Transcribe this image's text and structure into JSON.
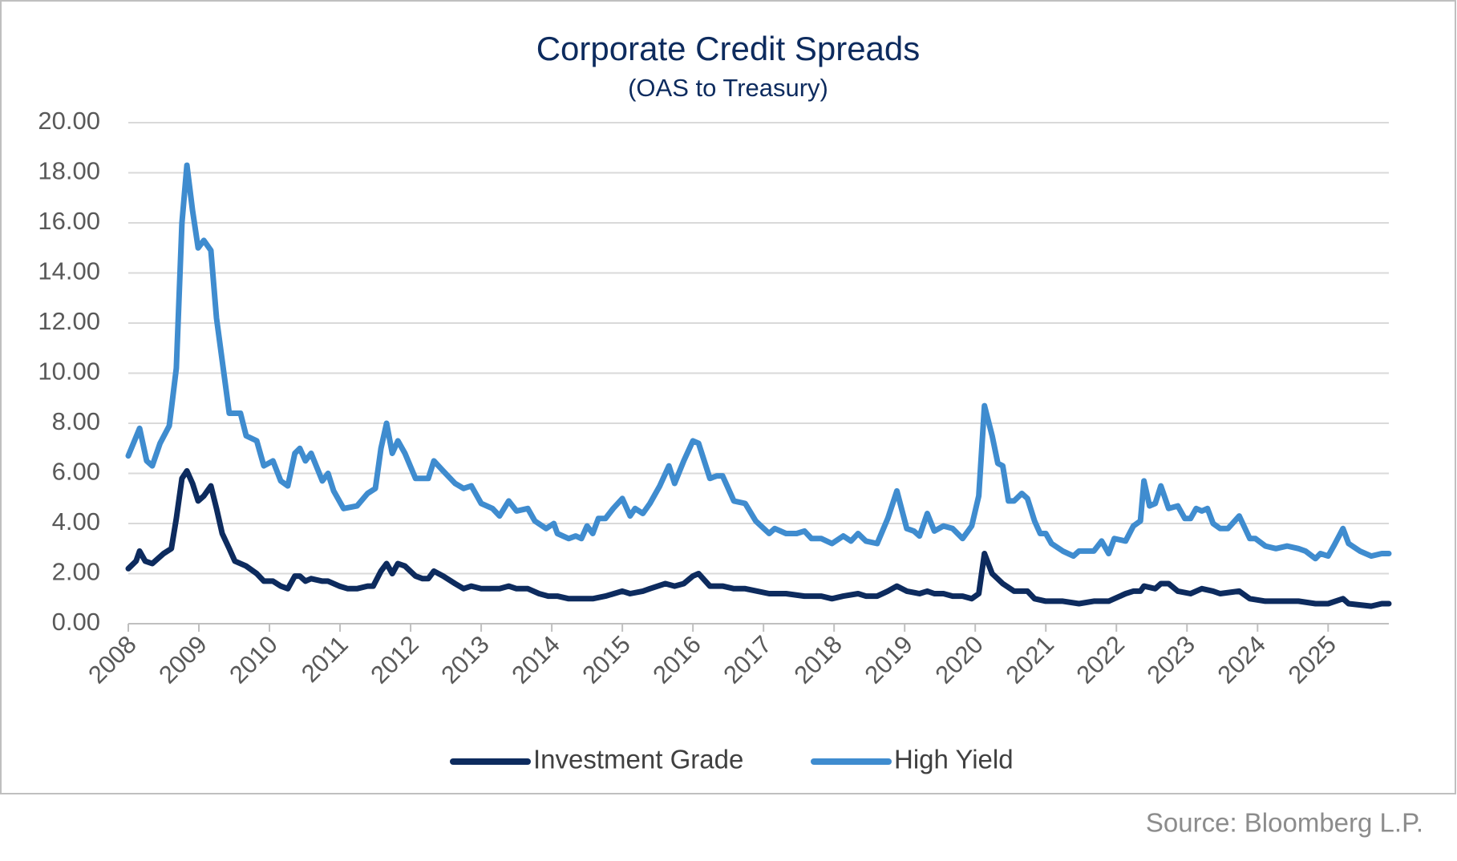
{
  "chart_data": {
    "type": "line",
    "title": "Corporate Credit Spreads",
    "subtitle": "(OAS to Treasury)",
    "source": "Source: Bloomberg L.P.",
    "grid": true,
    "legend": "bottom",
    "xlim": [
      2008,
      2025.86
    ],
    "xticks": [
      2008,
      2009,
      2010,
      2011,
      2012,
      2013,
      2014,
      2015,
      2016,
      2017,
      2018,
      2019,
      2020,
      2021,
      2022,
      2023,
      2024,
      2025
    ],
    "ylim": [
      0,
      20
    ],
    "yticks": [
      {
        "value": 0,
        "label": "0.00"
      },
      {
        "value": 2,
        "label": "2.00"
      },
      {
        "value": 4,
        "label": "4.00"
      },
      {
        "value": 6,
        "label": "6.00"
      },
      {
        "value": 8,
        "label": "8.00"
      },
      {
        "value": 10,
        "label": "10.00"
      },
      {
        "value": 12,
        "label": "12.00"
      },
      {
        "value": 14,
        "label": "14.00"
      },
      {
        "value": 16,
        "label": "16.00"
      },
      {
        "value": 18,
        "label": "18.00"
      },
      {
        "value": 20,
        "label": "20.00"
      }
    ],
    "series": [
      {
        "name": "Investment Grade",
        "color": "#0d2b5e",
        "x": [
          2008.0,
          2008.11,
          2008.16,
          2008.24,
          2008.34,
          2008.5,
          2008.61,
          2008.68,
          2008.76,
          2008.83,
          2008.91,
          2008.99,
          2009.07,
          2009.17,
          2009.25,
          2009.33,
          2009.43,
          2009.51,
          2009.67,
          2009.82,
          2009.92,
          2010.05,
          2010.16,
          2010.26,
          2010.36,
          2010.43,
          2010.51,
          2010.59,
          2010.75,
          2010.83,
          2010.99,
          2011.11,
          2011.24,
          2011.39,
          2011.47,
          2011.58,
          2011.66,
          2011.74,
          2011.82,
          2011.92,
          2012.07,
          2012.17,
          2012.25,
          2012.33,
          2012.46,
          2012.63,
          2012.75,
          2012.86,
          2013.0,
          2013.16,
          2013.26,
          2013.39,
          2013.5,
          2013.66,
          2013.82,
          2013.95,
          2014.08,
          2014.24,
          2014.42,
          2014.58,
          2014.76,
          2015.0,
          2015.11,
          2015.29,
          2015.39,
          2015.61,
          2015.74,
          2015.87,
          2016.0,
          2016.08,
          2016.24,
          2016.42,
          2016.58,
          2016.74,
          2017.08,
          2017.32,
          2017.58,
          2017.82,
          2017.97,
          2018.13,
          2018.34,
          2018.45,
          2018.61,
          2018.76,
          2018.89,
          2019.03,
          2019.21,
          2019.32,
          2019.42,
          2019.55,
          2019.68,
          2019.82,
          2019.95,
          2020.05,
          2020.13,
          2020.24,
          2020.39,
          2020.55,
          2020.66,
          2020.74,
          2020.84,
          2021.0,
          2021.24,
          2021.47,
          2021.68,
          2021.89,
          2021.97,
          2022.13,
          2022.24,
          2022.34,
          2022.39,
          2022.55,
          2022.63,
          2022.74,
          2022.87,
          2023.05,
          2023.21,
          2023.37,
          2023.47,
          2023.74,
          2023.89,
          2024.11,
          2024.26,
          2024.42,
          2024.58,
          2024.82,
          2025.0,
          2025.21,
          2025.29,
          2025.61,
          2025.76,
          2025.86
        ],
        "values": [
          2.2,
          2.5,
          2.9,
          2.5,
          2.4,
          2.8,
          3.0,
          4.2,
          5.8,
          6.1,
          5.6,
          4.9,
          5.1,
          5.5,
          4.6,
          3.6,
          3.0,
          2.5,
          2.3,
          2.0,
          1.7,
          1.7,
          1.5,
          1.4,
          1.9,
          1.9,
          1.7,
          1.8,
          1.7,
          1.7,
          1.5,
          1.4,
          1.4,
          1.5,
          1.5,
          2.1,
          2.4,
          2.0,
          2.4,
          2.3,
          1.9,
          1.8,
          1.8,
          2.1,
          1.9,
          1.6,
          1.4,
          1.5,
          1.4,
          1.4,
          1.4,
          1.5,
          1.4,
          1.4,
          1.2,
          1.1,
          1.1,
          1.0,
          1.0,
          1.0,
          1.1,
          1.3,
          1.2,
          1.3,
          1.4,
          1.6,
          1.5,
          1.6,
          1.9,
          2.0,
          1.5,
          1.5,
          1.4,
          1.4,
          1.2,
          1.2,
          1.1,
          1.1,
          1.0,
          1.1,
          1.2,
          1.1,
          1.1,
          1.3,
          1.5,
          1.3,
          1.2,
          1.3,
          1.2,
          1.2,
          1.1,
          1.1,
          1.0,
          1.2,
          2.8,
          2.0,
          1.6,
          1.3,
          1.3,
          1.3,
          1.0,
          0.9,
          0.9,
          0.8,
          0.9,
          0.9,
          1.0,
          1.2,
          1.3,
          1.3,
          1.5,
          1.4,
          1.6,
          1.6,
          1.3,
          1.2,
          1.4,
          1.3,
          1.2,
          1.3,
          1.0,
          0.9,
          0.9,
          0.9,
          0.9,
          0.8,
          0.8,
          1.0,
          0.8,
          0.7,
          0.8,
          0.8
        ]
      },
      {
        "name": "High Yield",
        "color": "#3f8ccf",
        "x": [
          2008.0,
          2008.16,
          2008.26,
          2008.34,
          2008.45,
          2008.58,
          2008.68,
          2008.76,
          2008.83,
          2008.91,
          2008.99,
          2009.07,
          2009.17,
          2009.25,
          2009.33,
          2009.43,
          2009.59,
          2009.67,
          2009.82,
          2009.92,
          2010.05,
          2010.16,
          2010.26,
          2010.36,
          2010.43,
          2010.51,
          2010.59,
          2010.75,
          2010.83,
          2010.91,
          2011.05,
          2011.24,
          2011.39,
          2011.5,
          2011.58,
          2011.66,
          2011.74,
          2011.82,
          2011.92,
          2012.07,
          2012.25,
          2012.33,
          2012.46,
          2012.63,
          2012.75,
          2012.86,
          2013.0,
          2013.16,
          2013.26,
          2013.39,
          2013.5,
          2013.66,
          2013.76,
          2013.92,
          2014.03,
          2014.08,
          2014.24,
          2014.34,
          2014.42,
          2014.5,
          2014.58,
          2014.66,
          2014.76,
          2014.87,
          2015.0,
          2015.11,
          2015.18,
          2015.29,
          2015.39,
          2015.53,
          2015.66,
          2015.74,
          2015.87,
          2016.0,
          2016.08,
          2016.24,
          2016.34,
          2016.42,
          2016.58,
          2016.74,
          2016.89,
          2017.08,
          2017.16,
          2017.32,
          2017.47,
          2017.58,
          2017.68,
          2017.82,
          2017.97,
          2018.13,
          2018.24,
          2018.34,
          2018.45,
          2018.61,
          2018.76,
          2018.89,
          2019.03,
          2019.13,
          2019.21,
          2019.32,
          2019.42,
          2019.55,
          2019.68,
          2019.82,
          2019.95,
          2020.05,
          2020.13,
          2020.24,
          2020.32,
          2020.39,
          2020.47,
          2020.55,
          2020.66,
          2020.74,
          2020.84,
          2020.92,
          2021.0,
          2021.08,
          2021.24,
          2021.39,
          2021.47,
          2021.68,
          2021.79,
          2021.89,
          2021.97,
          2022.13,
          2022.24,
          2022.34,
          2022.39,
          2022.47,
          2022.55,
          2022.63,
          2022.74,
          2022.87,
          2022.97,
          2023.05,
          2023.13,
          2023.21,
          2023.29,
          2023.37,
          2023.47,
          2023.58,
          2023.74,
          2023.89,
          2023.97,
          2024.11,
          2024.26,
          2024.42,
          2024.58,
          2024.68,
          2024.82,
          2024.89,
          2025.0,
          2025.08,
          2025.21,
          2025.29,
          2025.45,
          2025.61,
          2025.76,
          2025.86
        ],
        "values": [
          6.7,
          7.8,
          6.5,
          6.3,
          7.2,
          7.9,
          10.2,
          16.0,
          18.3,
          16.5,
          15.0,
          15.3,
          14.9,
          12.2,
          10.5,
          8.4,
          8.4,
          7.5,
          7.3,
          6.3,
          6.5,
          5.7,
          5.5,
          6.8,
          7.0,
          6.5,
          6.8,
          5.7,
          6.0,
          5.3,
          4.6,
          4.7,
          5.2,
          5.4,
          7.0,
          8.0,
          6.8,
          7.3,
          6.8,
          5.8,
          5.8,
          6.5,
          6.1,
          5.6,
          5.4,
          5.5,
          4.8,
          4.6,
          4.3,
          4.9,
          4.5,
          4.6,
          4.1,
          3.8,
          4.0,
          3.6,
          3.4,
          3.5,
          3.4,
          3.9,
          3.6,
          4.2,
          4.2,
          4.6,
          5.0,
          4.3,
          4.6,
          4.4,
          4.8,
          5.5,
          6.3,
          5.6,
          6.5,
          7.3,
          7.2,
          5.8,
          5.9,
          5.9,
          4.9,
          4.8,
          4.1,
          3.6,
          3.8,
          3.6,
          3.6,
          3.7,
          3.4,
          3.4,
          3.2,
          3.5,
          3.3,
          3.6,
          3.3,
          3.2,
          4.2,
          5.3,
          3.8,
          3.7,
          3.5,
          4.4,
          3.7,
          3.9,
          3.8,
          3.4,
          3.9,
          5.1,
          8.7,
          7.5,
          6.4,
          6.3,
          4.9,
          4.9,
          5.2,
          5.0,
          4.1,
          3.6,
          3.6,
          3.2,
          2.9,
          2.7,
          2.9,
          2.9,
          3.3,
          2.8,
          3.4,
          3.3,
          3.9,
          4.1,
          5.7,
          4.7,
          4.8,
          5.5,
          4.6,
          4.7,
          4.2,
          4.2,
          4.6,
          4.5,
          4.6,
          4.0,
          3.8,
          3.8,
          4.3,
          3.4,
          3.4,
          3.1,
          3.0,
          3.1,
          3.0,
          2.9,
          2.6,
          2.8,
          2.7,
          3.1,
          3.8,
          3.2,
          2.9,
          2.7,
          2.8,
          2.8
        ]
      }
    ]
  }
}
